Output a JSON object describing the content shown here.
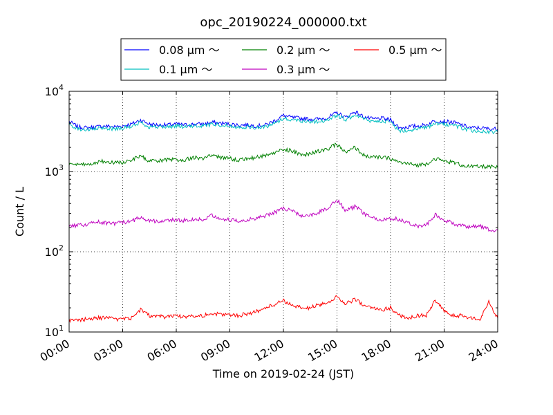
{
  "chart_data": {
    "type": "line",
    "title": "opc_20190224_000000.txt",
    "xlabel": "Time on 2019-02-24 (JST)",
    "ylabel": "Count / L",
    "x_ticks": [
      "00:00",
      "03:00",
      "06:00",
      "09:00",
      "12:00",
      "15:00",
      "18:00",
      "21:00",
      "24:00"
    ],
    "y_scale": "log",
    "ylim": [
      10,
      10000
    ],
    "y_ticks": [
      {
        "value": 10,
        "base": "10",
        "exp": "1"
      },
      {
        "value": 100,
        "base": "10",
        "exp": "2"
      },
      {
        "value": 1000,
        "base": "10",
        "exp": "3"
      },
      {
        "value": 10000,
        "base": "10",
        "exp": "4"
      }
    ],
    "xlim_hours": [
      0,
      24
    ],
    "grid": true,
    "legend_position": "top-center",
    "x_hours": [
      0,
      0.5,
      1,
      1.5,
      2,
      2.5,
      3,
      3.5,
      4,
      4.5,
      5,
      5.5,
      6,
      6.5,
      7,
      7.5,
      8,
      8.5,
      9,
      9.5,
      10,
      10.5,
      11,
      11.5,
      12,
      12.5,
      13,
      13.5,
      14,
      14.5,
      15,
      15.5,
      16,
      16.5,
      17,
      17.5,
      18,
      18.5,
      19,
      19.5,
      20,
      20.5,
      21,
      21.5,
      22,
      22.5,
      23,
      23.5,
      24
    ],
    "series": [
      {
        "name": "0.08 μm ～",
        "color": "#0000ff",
        "values": [
          4200,
          3600,
          3500,
          3600,
          3700,
          3600,
          3700,
          3900,
          4400,
          3900,
          3800,
          3800,
          3900,
          3800,
          3900,
          3900,
          4100,
          4000,
          3900,
          3800,
          3800,
          3700,
          3800,
          4300,
          5000,
          4700,
          4600,
          4500,
          4500,
          4700,
          5400,
          4700,
          5600,
          4800,
          4500,
          4600,
          4400,
          3500,
          3600,
          3700,
          3800,
          4300,
          4200,
          4100,
          3800,
          3500,
          3500,
          3400,
          3400
        ]
      },
      {
        "name": "0.1 μm ～",
        "color": "#00bfbf",
        "values": [
          3900,
          3400,
          3300,
          3400,
          3500,
          3400,
          3500,
          3600,
          4100,
          3600,
          3600,
          3600,
          3700,
          3600,
          3700,
          3700,
          3900,
          3800,
          3700,
          3600,
          3600,
          3500,
          3600,
          4000,
          4600,
          4400,
          4300,
          4200,
          4200,
          4400,
          5000,
          4400,
          5200,
          4500,
          4200,
          4300,
          4100,
          3200,
          3300,
          3400,
          3500,
          3900,
          3900,
          3800,
          3500,
          3200,
          3200,
          3100,
          3100
        ]
      },
      {
        "name": "0.2 μm ～",
        "color": "#008000",
        "values": [
          1250,
          1200,
          1220,
          1300,
          1350,
          1300,
          1300,
          1400,
          1550,
          1350,
          1350,
          1400,
          1400,
          1400,
          1500,
          1450,
          1600,
          1500,
          1450,
          1400,
          1450,
          1500,
          1600,
          1700,
          1900,
          1800,
          1600,
          1650,
          1800,
          1900,
          2200,
          1700,
          2000,
          1600,
          1500,
          1500,
          1450,
          1300,
          1250,
          1200,
          1250,
          1450,
          1350,
          1300,
          1200,
          1150,
          1150,
          1150,
          1120
        ]
      },
      {
        "name": "0.3 μm ～",
        "color": "#bf00bf",
        "values": [
          205,
          215,
          220,
          235,
          230,
          225,
          230,
          240,
          270,
          245,
          240,
          245,
          250,
          245,
          255,
          250,
          290,
          260,
          250,
          245,
          250,
          265,
          280,
          310,
          350,
          320,
          280,
          285,
          310,
          350,
          450,
          320,
          370,
          300,
          260,
          250,
          260,
          255,
          230,
          210,
          215,
          290,
          250,
          225,
          210,
          205,
          210,
          190,
          185
        ]
      },
      {
        "name": "0.5 μm ～",
        "color": "#ff0000",
        "values": [
          14,
          14,
          14.5,
          15,
          15,
          14.5,
          14.5,
          15,
          19,
          16,
          15.5,
          15.5,
          16,
          15.5,
          16,
          16,
          17,
          16.5,
          16.5,
          16,
          17,
          18,
          20,
          22,
          25,
          21,
          20,
          20,
          22,
          23,
          28,
          22,
          26,
          21,
          20,
          19,
          20,
          16,
          15,
          16,
          16,
          25,
          18,
          16,
          16,
          15,
          14,
          24,
          15
        ]
      }
    ]
  }
}
